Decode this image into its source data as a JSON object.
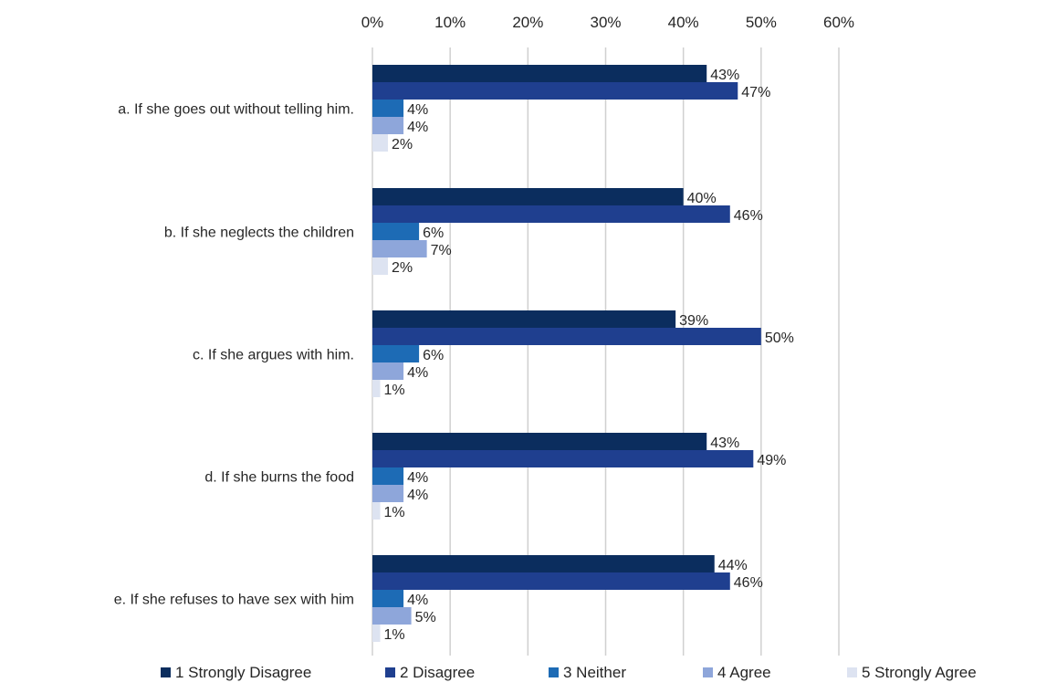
{
  "chart_data": {
    "type": "bar",
    "orientation": "horizontal",
    "title": "",
    "xlabel": "",
    "ylabel": "",
    "xlim": [
      0,
      60
    ],
    "ticks": [
      "0%",
      "10%",
      "20%",
      "30%",
      "40%",
      "50%",
      "60%"
    ],
    "tick_values": [
      0,
      10,
      20,
      30,
      40,
      50,
      60
    ],
    "grid": true,
    "legend_position": "bottom",
    "categories": [
      "a. If she goes out without telling him.",
      "b. If she neglects the children",
      "c. If she argues with him.",
      "d. If she burns the food",
      "e. If she refuses to have sex with him"
    ],
    "series": [
      {
        "name": "1 Strongly Disagree",
        "color": "#0b2d5e",
        "values": [
          43,
          40,
          39,
          43,
          44
        ],
        "labels": [
          "43%",
          "40%",
          "39%",
          "43%",
          "44%"
        ]
      },
      {
        "name": "2 Disagree",
        "color": "#1f3f8f",
        "values": [
          47,
          46,
          50,
          49,
          46
        ],
        "labels": [
          "47%",
          "46%",
          "50%",
          "49%",
          "46%"
        ]
      },
      {
        "name": "3 Neither",
        "color": "#1d6bb5",
        "values": [
          4,
          6,
          6,
          4,
          4
        ],
        "labels": [
          "4%",
          "6%",
          "6%",
          "4%",
          "4%"
        ]
      },
      {
        "name": "4 Agree",
        "color": "#8ea6da",
        "values": [
          4,
          7,
          4,
          4,
          5
        ],
        "labels": [
          "4%",
          "7%",
          "4%",
          "4%",
          "5%"
        ]
      },
      {
        "name": "5 Strongly Agree",
        "color": "#dde3f1",
        "values": [
          2,
          2,
          1,
          1,
          1
        ],
        "labels": [
          "2%",
          "2%",
          "1%",
          "1%",
          "1%"
        ]
      }
    ]
  }
}
